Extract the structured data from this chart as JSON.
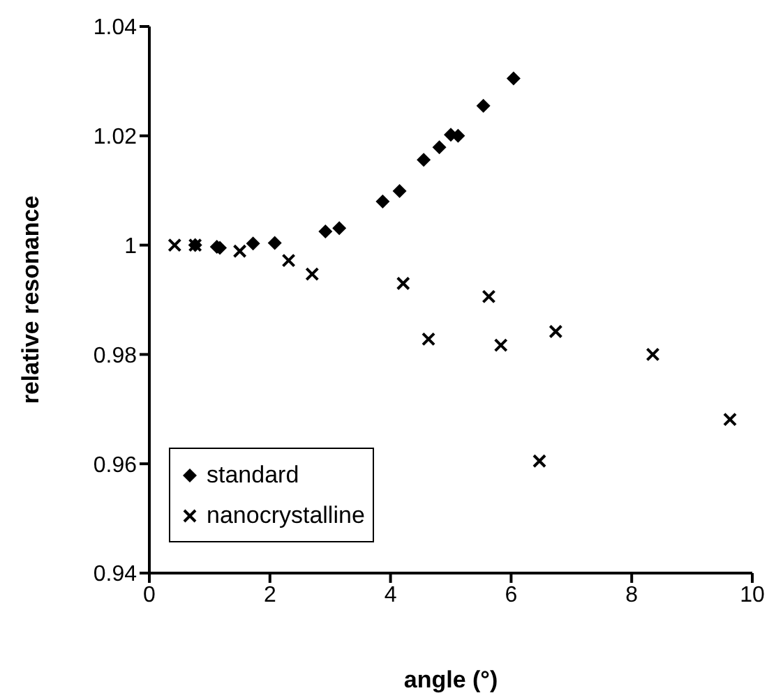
{
  "chart_data": {
    "type": "scatter",
    "xlabel": "angle (°)",
    "ylabel": "relative resonance",
    "xlim": [
      0,
      10
    ],
    "xticks": [
      0,
      2,
      4,
      6,
      8,
      10
    ],
    "ylim": [
      0.94,
      1.04
    ],
    "yticks": [
      0.94,
      0.96,
      0.98,
      1,
      1.02,
      1.04
    ],
    "grid": false,
    "legend": "bottom left",
    "series": [
      {
        "name": "standard",
        "color": "#000000",
        "marker": "diamond",
        "x": [
          0.76,
          1.12,
          1.17,
          1.72,
          2.08,
          2.92,
          3.15,
          3.87,
          4.15,
          4.55,
          4.81,
          5.0,
          5.12,
          5.54,
          6.04
        ],
        "values": [
          1.0,
          0.9997,
          0.9995,
          1.0003,
          1.0004,
          1.0025,
          1.0031,
          1.008,
          1.0099,
          1.0156,
          1.0179,
          1.0202,
          1.02,
          1.0255,
          1.0305
        ]
      },
      {
        "name": "nanocrystalline",
        "color": "#000000",
        "marker": "cross",
        "x": [
          0.42,
          0.76,
          1.5,
          2.31,
          2.7,
          4.21,
          4.63,
          5.63,
          5.83,
          6.47,
          6.74,
          8.35,
          9.63
        ],
        "values": [
          1.0,
          1.0,
          0.9989,
          0.9972,
          0.9947,
          0.993,
          0.9828,
          0.9906,
          0.9817,
          0.9605,
          0.9842,
          0.98,
          0.9681
        ]
      }
    ]
  }
}
